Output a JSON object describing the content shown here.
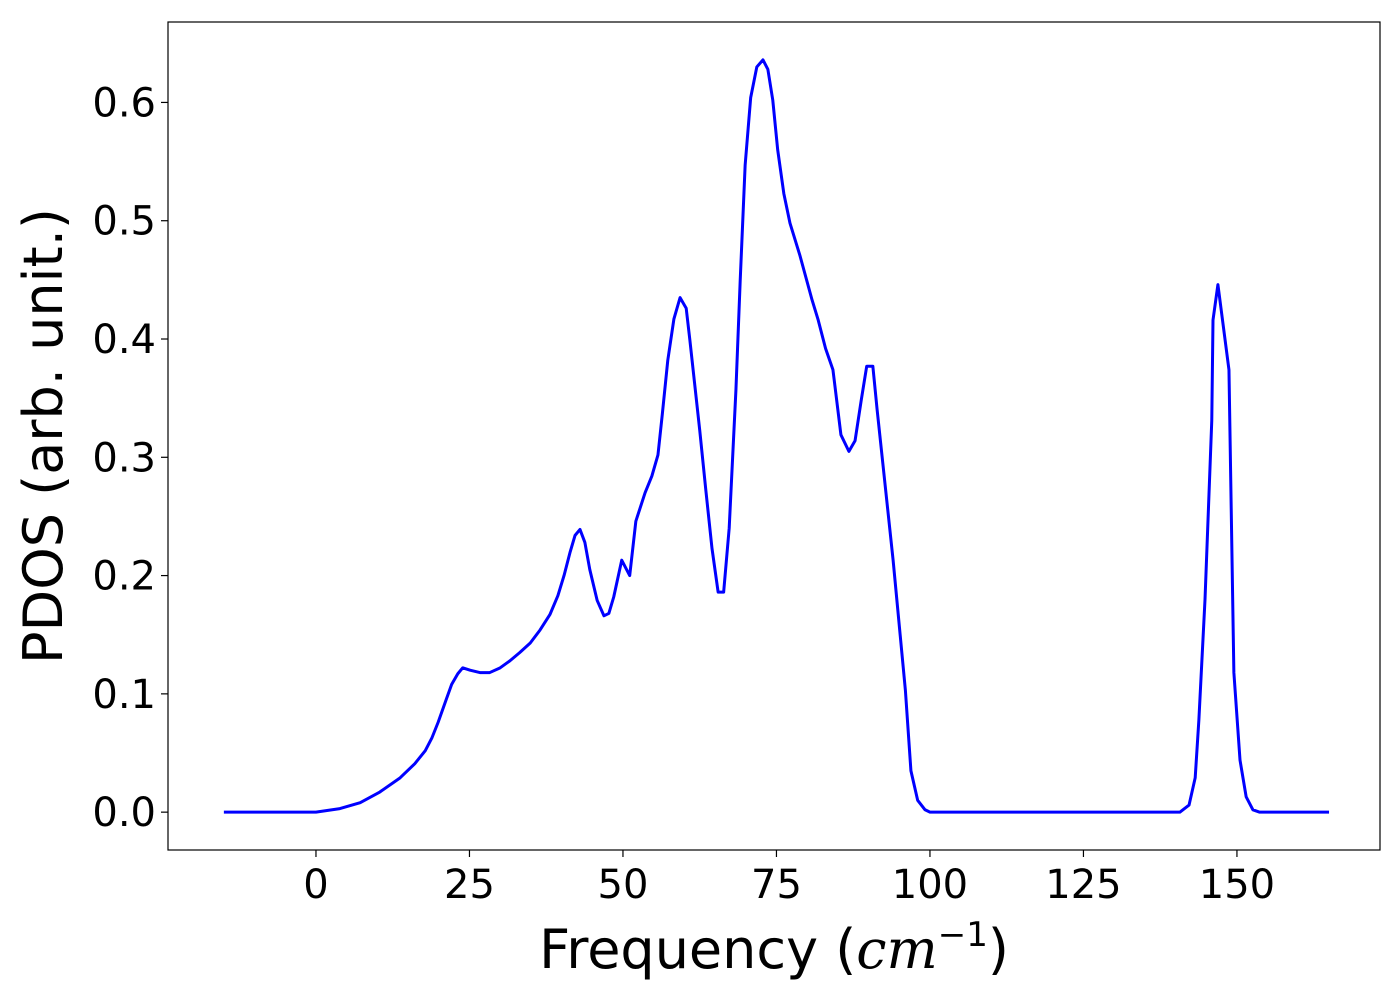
{
  "chart_data": {
    "type": "line",
    "xlabel": [
      "Frequency (",
      "cm",
      "−1",
      ")"
    ],
    "ylabel": "PDOS (arb. unit.)",
    "x": [
      -15,
      0,
      3.9,
      7.2,
      10.4,
      13.7,
      16.1,
      17.8,
      18.9,
      19.9,
      21.2,
      22.1,
      23.1,
      23.9,
      25.1,
      26.7,
      28.3,
      30,
      31.6,
      33.2,
      34.9,
      36.5,
      38.1,
      39.4,
      40.4,
      41.4,
      42.2,
      43,
      43.8,
      44.6,
      45.8,
      46.9,
      47.7,
      48.5,
      49.8,
      51.1,
      52.1,
      53.6,
      54.7,
      55.7,
      56.4,
      57.3,
      58.3,
      59.3,
      60.3,
      60.9,
      62.5,
      63.5,
      64.5,
      65.5,
      66.4,
      67.3,
      68.4,
      69.1,
      69.9,
      70.8,
      71.8,
      72.8,
      73.6,
      74.4,
      75.2,
      76.2,
      77.2,
      78.8,
      80.8,
      81.8,
      83,
      84.2,
      85.5,
      86.8,
      87.8,
      88.8,
      89.7,
      90.7,
      91.4,
      94,
      96,
      96.9,
      98,
      99.2,
      100,
      140.7,
      142.2,
      143.2,
      143.8,
      144.8,
      145.9,
      146.1,
      146.9,
      148.7,
      149.5,
      150.5,
      151.5,
      152.6,
      153.7,
      165
    ],
    "series": [
      {
        "name": "PDOS",
        "color": "#0000ff",
        "values": [
          0,
          0,
          0.003,
          0.008,
          0.017,
          0.029,
          0.041,
          0.052,
          0.063,
          0.076,
          0.095,
          0.108,
          0.117,
          0.122,
          0.12,
          0.118,
          0.118,
          0.122,
          0.128,
          0.135,
          0.143,
          0.154,
          0.167,
          0.183,
          0.2,
          0.22,
          0.234,
          0.239,
          0.228,
          0.205,
          0.179,
          0.166,
          0.168,
          0.182,
          0.213,
          0.2,
          0.246,
          0.27,
          0.284,
          0.302,
          0.336,
          0.382,
          0.417,
          0.435,
          0.426,
          0.399,
          0.323,
          0.272,
          0.223,
          0.186,
          0.186,
          0.24,
          0.357,
          0.45,
          0.547,
          0.604,
          0.63,
          0.636,
          0.628,
          0.602,
          0.56,
          0.523,
          0.498,
          0.471,
          0.433,
          0.416,
          0.392,
          0.374,
          0.319,
          0.305,
          0.314,
          0.348,
          0.377,
          0.377,
          0.34,
          0.213,
          0.103,
          0.035,
          0.01,
          0.002,
          0,
          0,
          0.006,
          0.029,
          0.078,
          0.18,
          0.331,
          0.416,
          0.446,
          0.374,
          0.118,
          0.044,
          0.013,
          0.002,
          0,
          0
        ]
      }
    ],
    "xlim": [
      -24.1,
      173.3
    ],
    "ylim": [
      -0.032,
      0.668
    ],
    "xticks": [
      0,
      25,
      50,
      75,
      100,
      125,
      150
    ],
    "yticks": [
      {
        "value": 0,
        "label": "0.0"
      },
      0.1,
      0.2,
      0.3,
      0.4,
      0.5,
      0.6
    ]
  }
}
